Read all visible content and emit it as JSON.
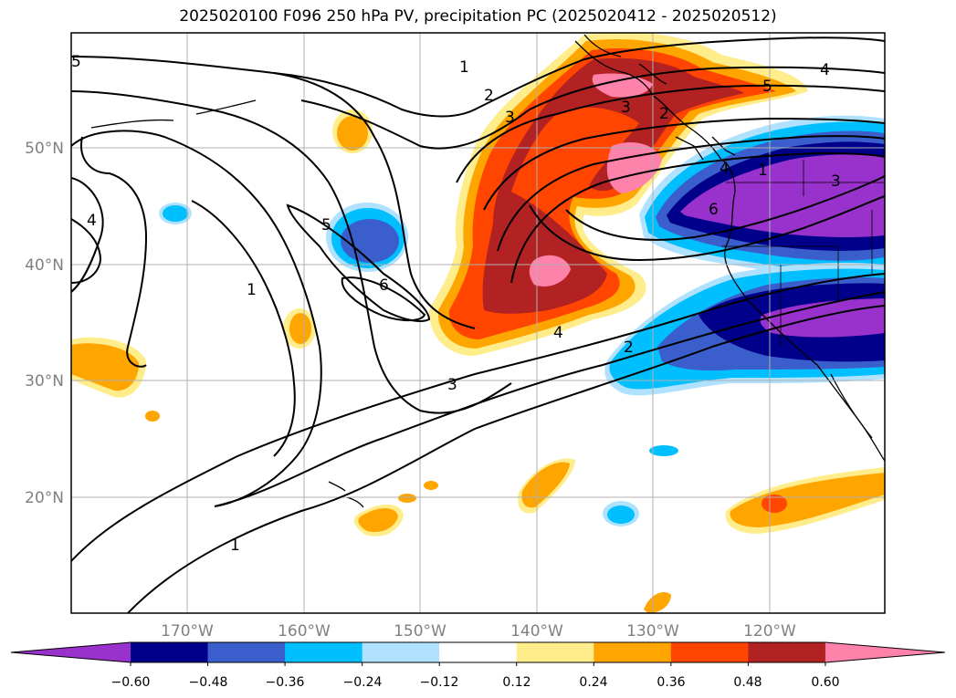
{
  "title": "2025020100 F096 250 hPa PV, precipitation PC (2025020412 - 2025020512)",
  "axes": {
    "lat_labels": [
      "50°N",
      "40°N",
      "30°N",
      "20°N"
    ],
    "lon_labels": [
      "170°W",
      "160°W",
      "150°W",
      "140°W",
      "130°W",
      "120°W"
    ]
  },
  "pv_contour_labels": [
    "1",
    "2",
    "3",
    "4",
    "5",
    "6",
    "1",
    "2",
    "3",
    "4",
    "5",
    "6",
    "1",
    "2",
    "3",
    "4",
    "3",
    "4",
    "5",
    "1"
  ],
  "colorbar": {
    "tick_labels": [
      "−0.60",
      "−0.48",
      "−0.36",
      "−0.24",
      "−0.12",
      "0.12",
      "0.24",
      "0.36",
      "0.48",
      "0.60"
    ],
    "colors": [
      "#9932cc",
      "#00008b",
      "#3a5fcd",
      "#00bfff",
      "#b0e2ff",
      "#ffffff",
      "#ffec8b",
      "#ffa500",
      "#ff4500",
      "#b22222",
      "#ff82ab"
    ]
  }
}
